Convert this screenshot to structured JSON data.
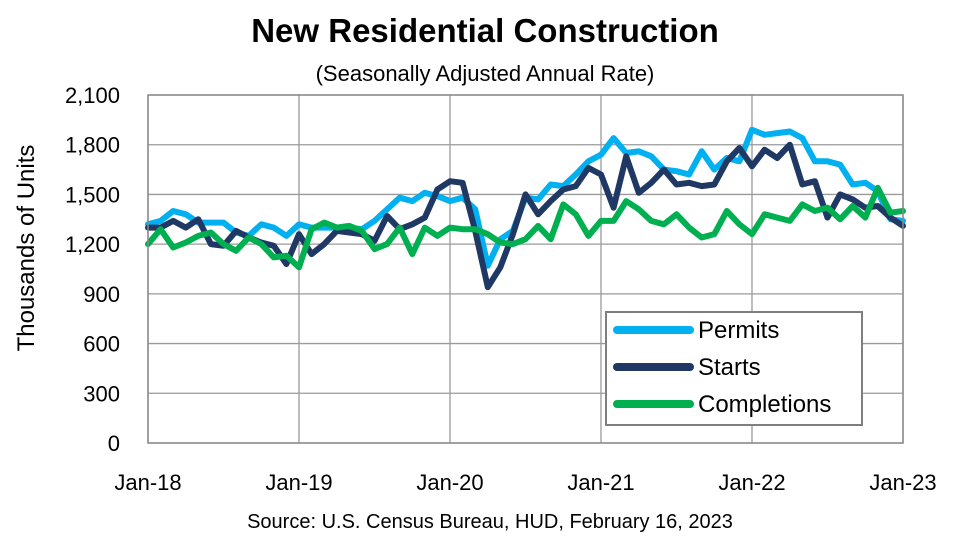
{
  "chart_data": {
    "type": "line",
    "title": "New Residential Construction",
    "subtitle": "(Seasonally Adjusted Annual Rate)",
    "xlabel": "",
    "ylabel": "Thousands of Units",
    "source": "Source:  U.S. Census Bureau, HUD, February 16, 2023",
    "ylim": [
      0,
      2100
    ],
    "y_ticks": [
      "0",
      "300",
      "600",
      "900",
      "1,200",
      "1,500",
      "1,800",
      "2,100"
    ],
    "y_tick_values": [
      0,
      300,
      600,
      900,
      1200,
      1500,
      1800,
      2100
    ],
    "x_tick_labels": [
      "Jan-18",
      "Jan-19",
      "Jan-20",
      "Jan-21",
      "Jan-22",
      "Jan-23"
    ],
    "x_tick_index": [
      0,
      12,
      24,
      36,
      48,
      60
    ],
    "grid": true,
    "legend_position": "bottom-right",
    "x": [
      "Jan-18",
      "Feb-18",
      "Mar-18",
      "Apr-18",
      "May-18",
      "Jun-18",
      "Jul-18",
      "Aug-18",
      "Sep-18",
      "Oct-18",
      "Nov-18",
      "Dec-18",
      "Jan-19",
      "Feb-19",
      "Mar-19",
      "Apr-19",
      "May-19",
      "Jun-19",
      "Jul-19",
      "Aug-19",
      "Sep-19",
      "Oct-19",
      "Nov-19",
      "Dec-19",
      "Jan-20",
      "Feb-20",
      "Mar-20",
      "Apr-20",
      "May-20",
      "Jun-20",
      "Jul-20",
      "Aug-20",
      "Sep-20",
      "Oct-20",
      "Nov-20",
      "Dec-20",
      "Jan-21",
      "Feb-21",
      "Mar-21",
      "Apr-21",
      "May-21",
      "Jun-21",
      "Jul-21",
      "Aug-21",
      "Sep-21",
      "Oct-21",
      "Nov-21",
      "Dec-21",
      "Jan-22",
      "Feb-22",
      "Mar-22",
      "Apr-22",
      "May-22",
      "Jun-22",
      "Jul-22",
      "Aug-22",
      "Sep-22",
      "Oct-22",
      "Nov-22",
      "Dec-22",
      "Jan-23"
    ],
    "series": [
      {
        "name": "Permits",
        "color": "#00b0f0",
        "values": [
          1320,
          1340,
          1400,
          1380,
          1330,
          1330,
          1330,
          1270,
          1250,
          1320,
          1300,
          1250,
          1320,
          1300,
          1300,
          1300,
          1300,
          1290,
          1340,
          1410,
          1480,
          1460,
          1510,
          1490,
          1460,
          1480,
          1410,
          1070,
          1230,
          1280,
          1480,
          1470,
          1560,
          1550,
          1620,
          1700,
          1740,
          1840,
          1750,
          1760,
          1730,
          1650,
          1640,
          1620,
          1760,
          1650,
          1720,
          1700,
          1890,
          1860,
          1870,
          1880,
          1840,
          1700,
          1700,
          1680,
          1560,
          1570,
          1520,
          1350,
          1340
        ]
      },
      {
        "name": "Starts",
        "color": "#203864",
        "values": [
          1300,
          1300,
          1340,
          1300,
          1350,
          1200,
          1190,
          1280,
          1240,
          1210,
          1190,
          1080,
          1260,
          1140,
          1200,
          1280,
          1270,
          1260,
          1220,
          1370,
          1290,
          1320,
          1360,
          1530,
          1580,
          1570,
          1280,
          940,
          1060,
          1260,
          1500,
          1380,
          1460,
          1530,
          1550,
          1660,
          1620,
          1420,
          1730,
          1510,
          1570,
          1650,
          1560,
          1570,
          1550,
          1560,
          1700,
          1780,
          1670,
          1770,
          1720,
          1800,
          1560,
          1580,
          1360,
          1500,
          1470,
          1420,
          1430,
          1360,
          1310
        ]
      },
      {
        "name": "Completions",
        "color": "#00b050",
        "values": [
          1200,
          1290,
          1180,
          1210,
          1250,
          1270,
          1200,
          1160,
          1240,
          1200,
          1120,
          1130,
          1060,
          1290,
          1330,
          1300,
          1310,
          1280,
          1170,
          1200,
          1300,
          1140,
          1300,
          1250,
          1300,
          1290,
          1290,
          1260,
          1210,
          1200,
          1230,
          1310,
          1230,
          1440,
          1380,
          1250,
          1340,
          1340,
          1460,
          1410,
          1340,
          1320,
          1380,
          1300,
          1240,
          1260,
          1400,
          1320,
          1260,
          1380,
          1360,
          1340,
          1440,
          1400,
          1420,
          1350,
          1430,
          1360,
          1540,
          1390,
          1400
        ]
      }
    ]
  }
}
